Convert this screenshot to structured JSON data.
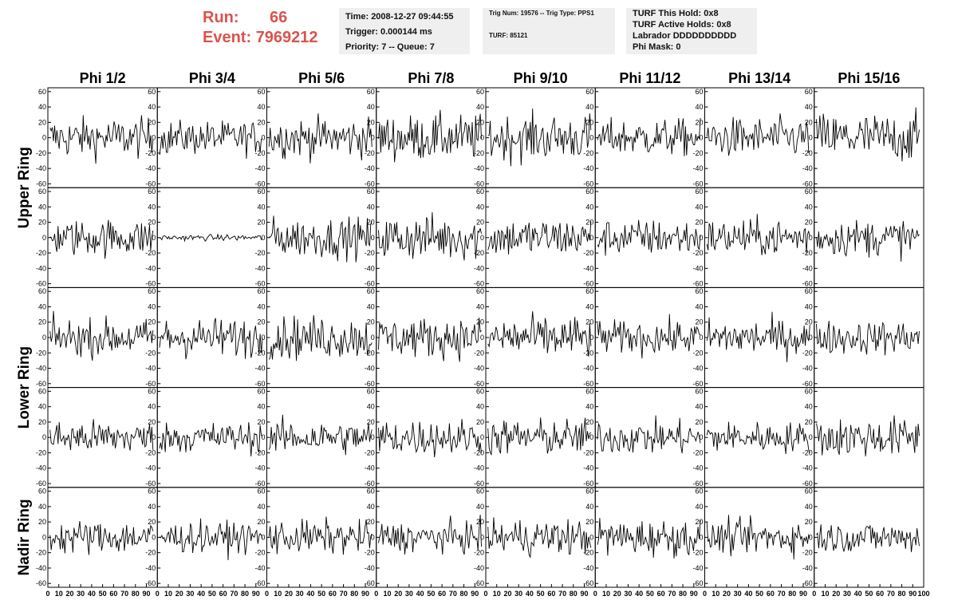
{
  "header": {
    "run_label": "Run:",
    "run_value": "66",
    "event_label": "Event:",
    "event_value": "7969212"
  },
  "info_box_1": {
    "time": "Time: 2008-12-27 09:44:55",
    "trigger": "Trigger: 0.000144 ms",
    "priority": "Priority: 7 -- Queue: 7"
  },
  "info_box_2": {
    "trig": "Trig Num: 19576 -- Trig Type: PPS1",
    "turf": "TURF: 85121"
  },
  "info_box_3": {
    "hold": "TURF This Hold: 0x8",
    "active": "TURF Active Holds: 0x8",
    "labrador": "Labrador DDDDDDDDDD",
    "phimask": "Phi Mask: 0"
  },
  "colors": {
    "run_text": "#d9534f",
    "trace": "#000000",
    "info_bg": "#efefef"
  },
  "chart_data": {
    "type": "line",
    "columns": [
      "Phi 1/2",
      "Phi 3/4",
      "Phi 5/6",
      "Phi 7/8",
      "Phi 9/10",
      "Phi 11/12",
      "Phi 13/14",
      "Phi 15/16"
    ],
    "ring_labels": [
      {
        "text": "Upper Ring",
        "rows": [
          0,
          1
        ]
      },
      {
        "text": "Lower Ring",
        "rows": [
          2,
          3
        ]
      },
      {
        "text": "Nadir Ring",
        "rows": [
          4
        ]
      }
    ],
    "rows": 5,
    "xlim": [
      0,
      100
    ],
    "ylim": [
      -65,
      65
    ],
    "y_ticks": [
      -60,
      -40,
      -20,
      0,
      20,
      40,
      60
    ],
    "x_tick_labels": [
      "0",
      "10",
      "20",
      "30",
      "40",
      "50",
      "60",
      "70",
      "80",
      "90",
      "100"
    ],
    "samples": 90,
    "amplitude": [
      [
        13,
        11,
        13,
        15,
        15,
        12,
        13,
        16
      ],
      [
        12,
        2,
        13,
        15,
        13,
        12,
        12,
        12
      ],
      [
        12,
        13,
        14,
        13,
        14,
        11,
        12,
        11
      ],
      [
        11,
        10,
        11,
        12,
        12,
        11,
        10,
        13
      ],
      [
        11,
        10,
        11,
        10,
        12,
        12,
        11,
        10
      ]
    ]
  }
}
